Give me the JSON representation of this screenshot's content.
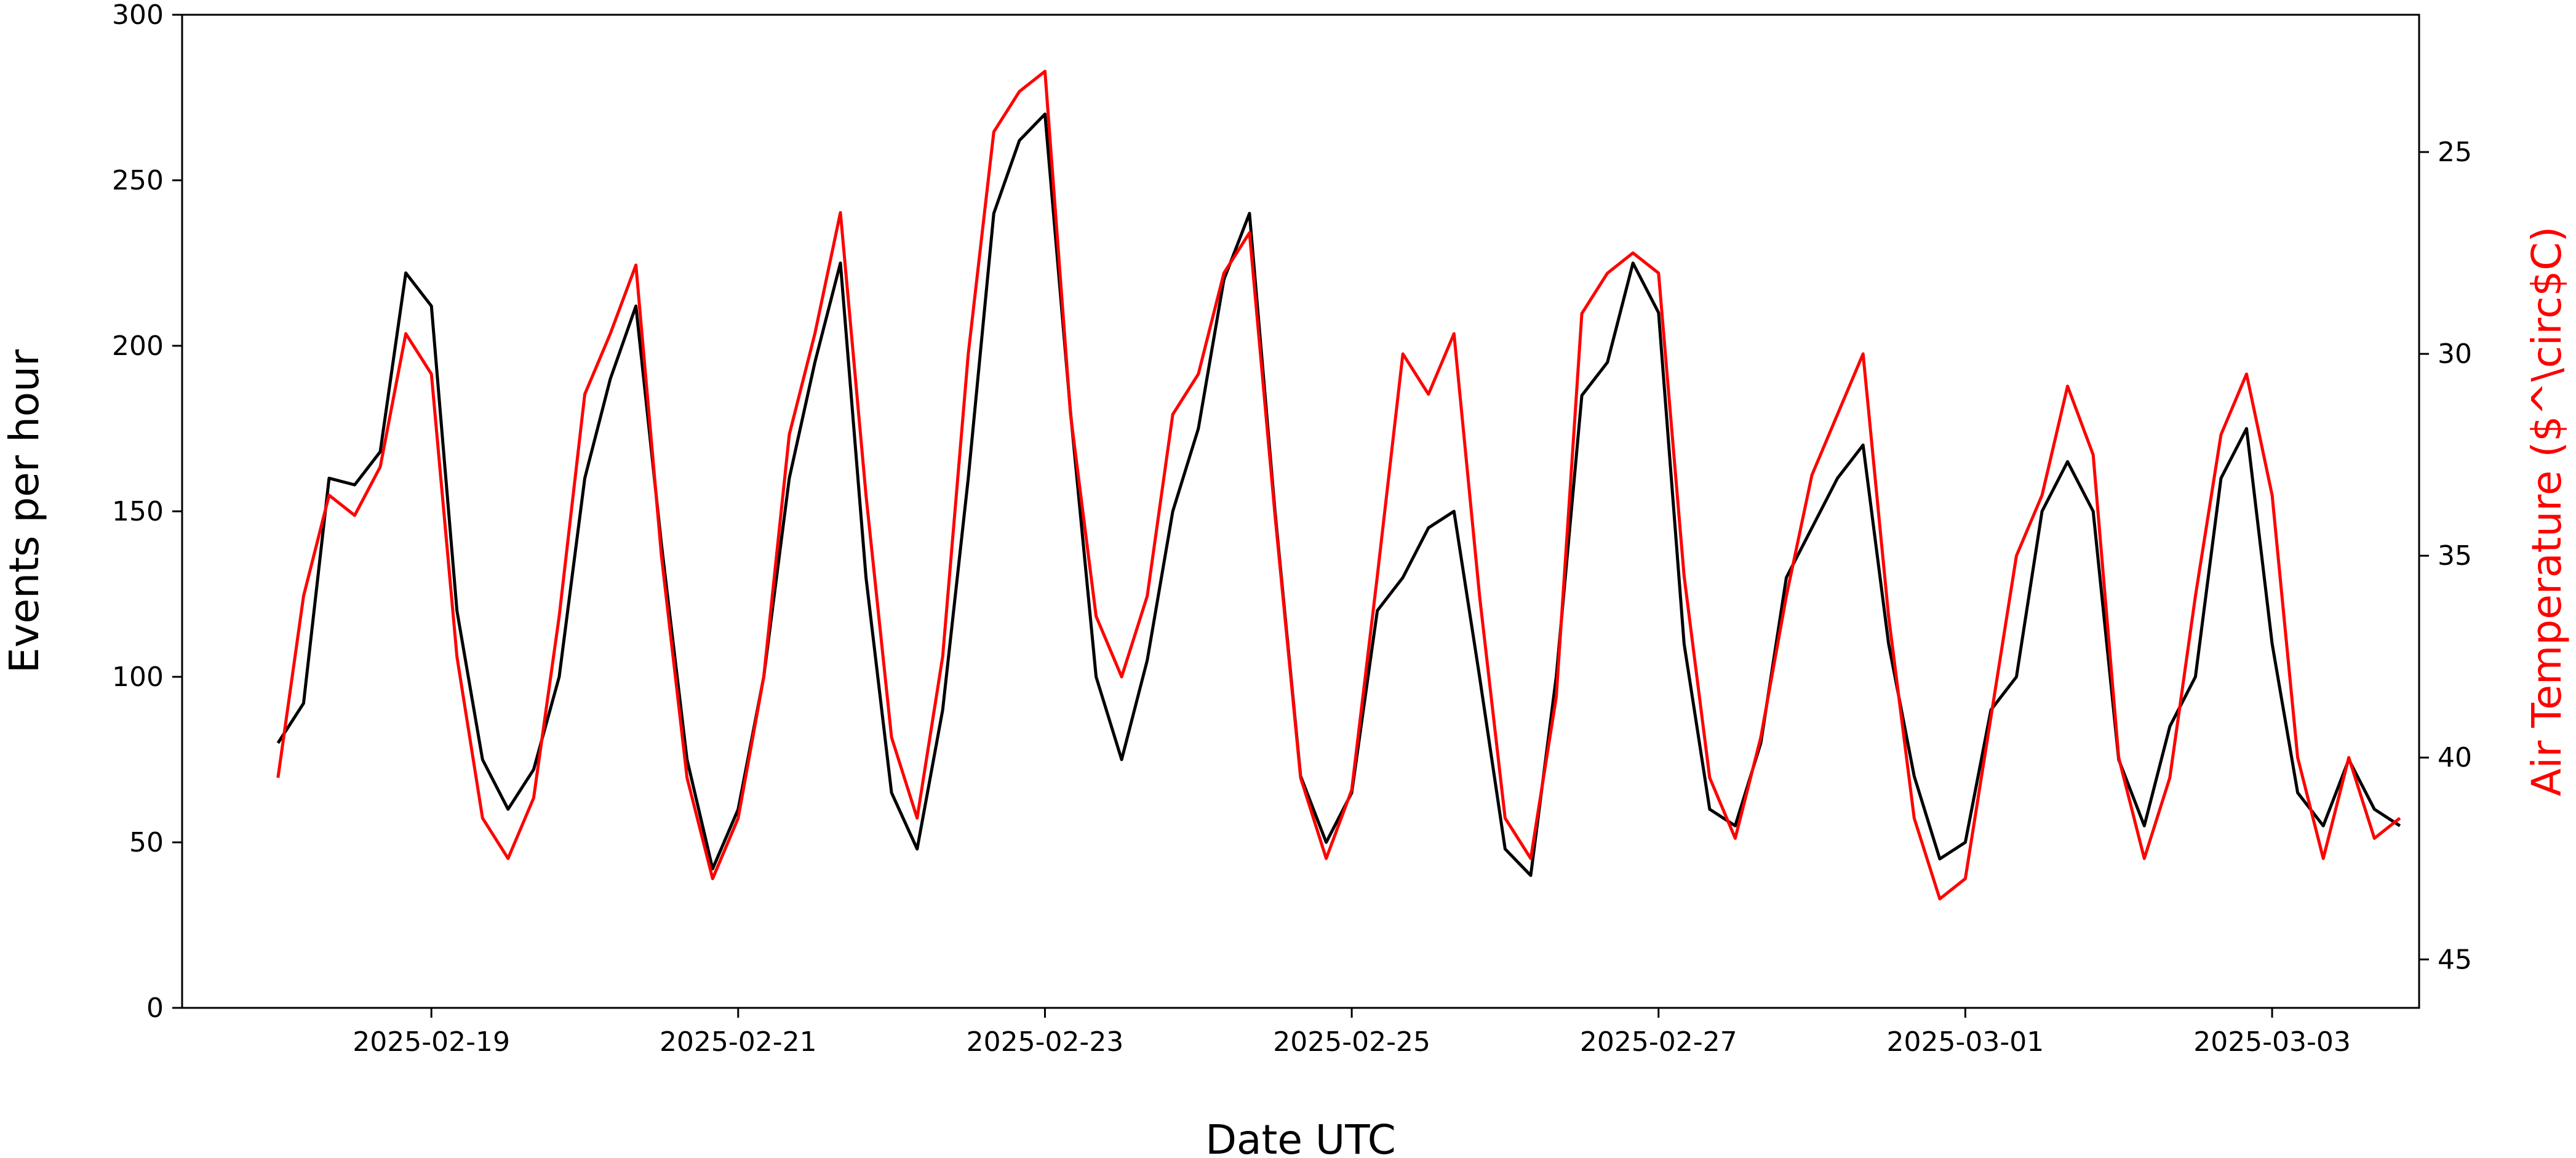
{
  "chart_data": {
    "type": "line",
    "xlabel": "Date UTC",
    "ylabel": "Events per hour",
    "y2label": "Air Temperature ($^\\circ$C)",
    "xlim": [
      "2025-02-17T09:00",
      "2025-03-03T23:00"
    ],
    "ylim": [
      0,
      300
    ],
    "y2lim": [
      46.2,
      21.6
    ],
    "y2_inverted": true,
    "x_ticks": [
      "2025-02-19",
      "2025-02-21",
      "2025-02-23",
      "2025-02-25",
      "2025-02-27",
      "2025-03-01",
      "2025-03-03"
    ],
    "y_ticks": [
      0,
      50,
      100,
      150,
      200,
      250,
      300
    ],
    "y2_ticks": [
      25,
      30,
      35,
      40,
      45
    ],
    "grid": false,
    "legend": "none",
    "series": [
      {
        "color": "#000000",
        "axis": "left",
        "points": [
          [
            "2025-02-18T00:00",
            80
          ],
          [
            "2025-02-18T04:00",
            92
          ],
          [
            "2025-02-18T08:00",
            160
          ],
          [
            "2025-02-18T12:00",
            158
          ],
          [
            "2025-02-18T16:00",
            168
          ],
          [
            "2025-02-18T20:00",
            222
          ],
          [
            "2025-02-19T00:00",
            212
          ],
          [
            "2025-02-19T04:00",
            120
          ],
          [
            "2025-02-19T08:00",
            75
          ],
          [
            "2025-02-19T12:00",
            60
          ],
          [
            "2025-02-19T16:00",
            72
          ],
          [
            "2025-02-19T20:00",
            100
          ],
          [
            "2025-02-20T00:00",
            160
          ],
          [
            "2025-02-20T04:00",
            190
          ],
          [
            "2025-02-20T08:00",
            212
          ],
          [
            "2025-02-20T12:00",
            140
          ],
          [
            "2025-02-20T16:00",
            75
          ],
          [
            "2025-02-20T20:00",
            42
          ],
          [
            "2025-02-21T00:00",
            60
          ],
          [
            "2025-02-21T04:00",
            100
          ],
          [
            "2025-02-21T08:00",
            160
          ],
          [
            "2025-02-21T12:00",
            195
          ],
          [
            "2025-02-21T16:00",
            225
          ],
          [
            "2025-02-21T20:00",
            130
          ],
          [
            "2025-02-22T00:00",
            65
          ],
          [
            "2025-02-22T04:00",
            48
          ],
          [
            "2025-02-22T08:00",
            90
          ],
          [
            "2025-02-22T12:00",
            160
          ],
          [
            "2025-02-22T16:00",
            240
          ],
          [
            "2025-02-22T20:00",
            262
          ],
          [
            "2025-02-23T00:00",
            270
          ],
          [
            "2025-02-23T04:00",
            180
          ],
          [
            "2025-02-23T08:00",
            100
          ],
          [
            "2025-02-23T12:00",
            75
          ],
          [
            "2025-02-23T16:00",
            105
          ],
          [
            "2025-02-23T20:00",
            150
          ],
          [
            "2025-02-24T00:00",
            175
          ],
          [
            "2025-02-24T04:00",
            220
          ],
          [
            "2025-02-24T08:00",
            240
          ],
          [
            "2025-02-24T12:00",
            150
          ],
          [
            "2025-02-24T16:00",
            70
          ],
          [
            "2025-02-24T20:00",
            50
          ],
          [
            "2025-02-25T00:00",
            65
          ],
          [
            "2025-02-25T04:00",
            120
          ],
          [
            "2025-02-25T08:00",
            130
          ],
          [
            "2025-02-25T12:00",
            145
          ],
          [
            "2025-02-25T16:00",
            150
          ],
          [
            "2025-02-25T20:00",
            100
          ],
          [
            "2025-02-26T00:00",
            48
          ],
          [
            "2025-02-26T04:00",
            40
          ],
          [
            "2025-02-26T08:00",
            100
          ],
          [
            "2025-02-26T12:00",
            185
          ],
          [
            "2025-02-26T16:00",
            195
          ],
          [
            "2025-02-26T20:00",
            225
          ],
          [
            "2025-02-27T00:00",
            210
          ],
          [
            "2025-02-27T04:00",
            110
          ],
          [
            "2025-02-27T08:00",
            60
          ],
          [
            "2025-02-27T12:00",
            55
          ],
          [
            "2025-02-27T16:00",
            80
          ],
          [
            "2025-02-27T20:00",
            130
          ],
          [
            "2025-02-28T00:00",
            145
          ],
          [
            "2025-02-28T04:00",
            160
          ],
          [
            "2025-02-28T08:00",
            170
          ],
          [
            "2025-02-28T12:00",
            110
          ],
          [
            "2025-02-28T16:00",
            70
          ],
          [
            "2025-02-28T20:00",
            45
          ],
          [
            "2025-03-01T00:00",
            50
          ],
          [
            "2025-03-01T04:00",
            90
          ],
          [
            "2025-03-01T08:00",
            100
          ],
          [
            "2025-03-01T12:00",
            150
          ],
          [
            "2025-03-01T16:00",
            165
          ],
          [
            "2025-03-01T20:00",
            150
          ],
          [
            "2025-03-02T00:00",
            75
          ],
          [
            "2025-03-02T04:00",
            55
          ],
          [
            "2025-03-02T08:00",
            85
          ],
          [
            "2025-03-02T12:00",
            100
          ],
          [
            "2025-03-02T16:00",
            160
          ],
          [
            "2025-03-02T20:00",
            175
          ],
          [
            "2025-03-03T00:00",
            110
          ],
          [
            "2025-03-03T04:00",
            65
          ],
          [
            "2025-03-03T08:00",
            55
          ],
          [
            "2025-03-03T12:00",
            75
          ],
          [
            "2025-03-03T16:00",
            60
          ],
          [
            "2025-03-03T20:00",
            55
          ]
        ]
      },
      {
        "color": "#ff0000",
        "axis": "right",
        "points": [
          [
            "2025-02-18T00:00",
            40.5
          ],
          [
            "2025-02-18T04:00",
            36.0
          ],
          [
            "2025-02-18T08:00",
            33.5
          ],
          [
            "2025-02-18T12:00",
            34.0
          ],
          [
            "2025-02-18T16:00",
            32.8
          ],
          [
            "2025-02-18T20:00",
            29.5
          ],
          [
            "2025-02-19T00:00",
            30.5
          ],
          [
            "2025-02-19T04:00",
            37.5
          ],
          [
            "2025-02-19T08:00",
            41.5
          ],
          [
            "2025-02-19T12:00",
            42.5
          ],
          [
            "2025-02-19T16:00",
            41.0
          ],
          [
            "2025-02-19T20:00",
            36.5
          ],
          [
            "2025-02-20T00:00",
            31.0
          ],
          [
            "2025-02-20T04:00",
            29.5
          ],
          [
            "2025-02-20T08:00",
            27.8
          ],
          [
            "2025-02-20T12:00",
            35.0
          ],
          [
            "2025-02-20T16:00",
            40.5
          ],
          [
            "2025-02-20T20:00",
            43.0
          ],
          [
            "2025-02-21T00:00",
            41.5
          ],
          [
            "2025-02-21T04:00",
            38.0
          ],
          [
            "2025-02-21T08:00",
            32.0
          ],
          [
            "2025-02-21T12:00",
            29.5
          ],
          [
            "2025-02-21T16:00",
            26.5
          ],
          [
            "2025-02-21T20:00",
            33.5
          ],
          [
            "2025-02-22T00:00",
            39.5
          ],
          [
            "2025-02-22T04:00",
            41.5
          ],
          [
            "2025-02-22T08:00",
            37.5
          ],
          [
            "2025-02-22T12:00",
            30.0
          ],
          [
            "2025-02-22T16:00",
            24.5
          ],
          [
            "2025-02-22T20:00",
            23.5
          ],
          [
            "2025-02-23T00:00",
            23.0
          ],
          [
            "2025-02-23T04:00",
            31.5
          ],
          [
            "2025-02-23T08:00",
            36.5
          ],
          [
            "2025-02-23T12:00",
            38.0
          ],
          [
            "2025-02-23T16:00",
            36.0
          ],
          [
            "2025-02-23T20:00",
            31.5
          ],
          [
            "2025-02-24T00:00",
            30.5
          ],
          [
            "2025-02-24T04:00",
            28.0
          ],
          [
            "2025-02-24T08:00",
            27.0
          ],
          [
            "2025-02-24T12:00",
            34.0
          ],
          [
            "2025-02-24T16:00",
            40.5
          ],
          [
            "2025-02-24T20:00",
            42.5
          ],
          [
            "2025-02-25T00:00",
            40.8
          ],
          [
            "2025-02-25T04:00",
            35.5
          ],
          [
            "2025-02-25T08:00",
            30.0
          ],
          [
            "2025-02-25T12:00",
            31.0
          ],
          [
            "2025-02-25T16:00",
            29.5
          ],
          [
            "2025-02-25T20:00",
            36.0
          ],
          [
            "2025-02-26T00:00",
            41.5
          ],
          [
            "2025-02-26T04:00",
            42.5
          ],
          [
            "2025-02-26T08:00",
            38.5
          ],
          [
            "2025-02-26T12:00",
            29.0
          ],
          [
            "2025-02-26T16:00",
            28.0
          ],
          [
            "2025-02-26T20:00",
            27.5
          ],
          [
            "2025-02-27T00:00",
            28.0
          ],
          [
            "2025-02-27T04:00",
            35.5
          ],
          [
            "2025-02-27T08:00",
            40.5
          ],
          [
            "2025-02-27T12:00",
            42.0
          ],
          [
            "2025-02-27T16:00",
            39.5
          ],
          [
            "2025-02-27T20:00",
            36.0
          ],
          [
            "2025-02-28T00:00",
            33.0
          ],
          [
            "2025-02-28T04:00",
            31.5
          ],
          [
            "2025-02-28T08:00",
            30.0
          ],
          [
            "2025-02-28T12:00",
            36.5
          ],
          [
            "2025-02-28T16:00",
            41.5
          ],
          [
            "2025-02-28T20:00",
            43.5
          ],
          [
            "2025-03-01T00:00",
            43.0
          ],
          [
            "2025-03-01T04:00",
            39.0
          ],
          [
            "2025-03-01T08:00",
            35.0
          ],
          [
            "2025-03-01T12:00",
            33.5
          ],
          [
            "2025-03-01T16:00",
            30.8
          ],
          [
            "2025-03-01T20:00",
            32.5
          ],
          [
            "2025-03-02T00:00",
            40.0
          ],
          [
            "2025-03-02T04:00",
            42.5
          ],
          [
            "2025-03-02T08:00",
            40.5
          ],
          [
            "2025-03-02T12:00",
            36.0
          ],
          [
            "2025-03-02T16:00",
            32.0
          ],
          [
            "2025-03-02T20:00",
            30.5
          ],
          [
            "2025-03-03T00:00",
            33.5
          ],
          [
            "2025-03-03T04:00",
            40.0
          ],
          [
            "2025-03-03T08:00",
            42.5
          ],
          [
            "2025-03-03T12:00",
            40.0
          ],
          [
            "2025-03-03T16:00",
            42.0
          ],
          [
            "2025-03-03T20:00",
            41.5
          ]
        ]
      }
    ]
  }
}
